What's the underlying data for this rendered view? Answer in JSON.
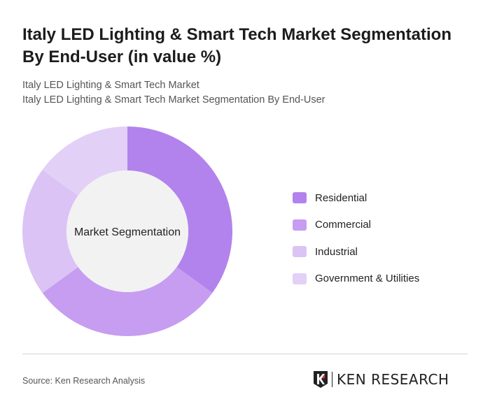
{
  "header": {
    "title": "Italy LED Lighting & Smart Tech Market Segmentation By End-User (in value %)",
    "subtitle1": "Italy LED Lighting & Smart Tech Market",
    "subtitle2": "Italy LED Lighting & Smart Tech Market Segmentation By End-User"
  },
  "chart_data": {
    "type": "pie",
    "donut": true,
    "center_label": "Market Segmentation",
    "categories": [
      "Residential",
      "Commercial",
      "Industrial",
      "Government & Utilities"
    ],
    "values": [
      35,
      30,
      20,
      15
    ],
    "colors": [
      "#b283ec",
      "#c69df0",
      "#dcc3f6",
      "#e3d0f7"
    ],
    "legend_placement": "right"
  },
  "footer": {
    "source": "Source: Ken Research Analysis",
    "logo_text": "KEN RESEARCH"
  }
}
